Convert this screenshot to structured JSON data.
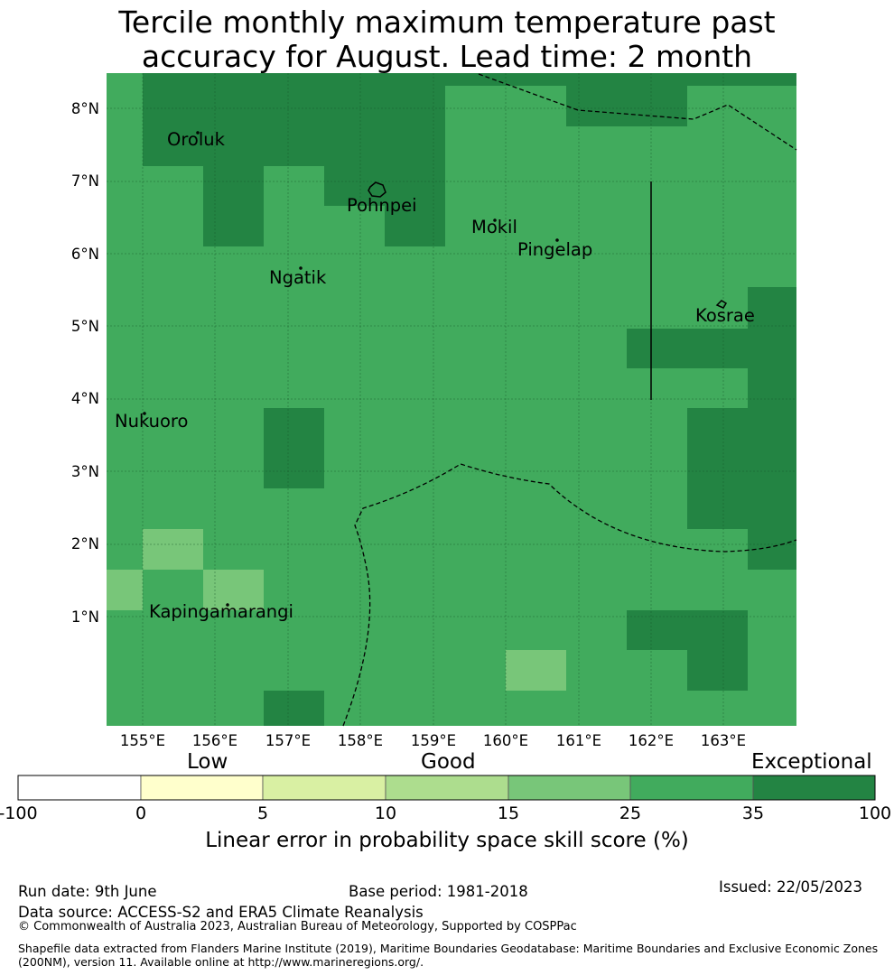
{
  "title_line1": "Tercile monthly maximum temperature past",
  "title_line2": "accuracy for August. Lead time: 2 month",
  "map": {
    "lon_labels": [
      "155°E",
      "156°E",
      "157°E",
      "158°E",
      "159°E",
      "160°E",
      "161°E",
      "162°E",
      "163°E"
    ],
    "lat_labels": [
      "8°N",
      "7°N",
      "6°N",
      "5°N",
      "4°N",
      "3°N",
      "2°N",
      "1°N"
    ],
    "places": [
      "Oroluk",
      "Pohnpei",
      "Mokil",
      "Pingelap",
      "Ngatik",
      "Kosrae",
      "Nukuoro",
      "Kapingamarangi"
    ],
    "colors": {
      "band_25_35": "#41ab5d",
      "band_35_100": "#238443",
      "band_15_25": "#78c679"
    }
  },
  "colorbar": {
    "category_labels": [
      "Low",
      "Good",
      "Exceptional"
    ],
    "ticks": [
      "-100",
      "0",
      "5",
      "10",
      "15",
      "25",
      "35",
      "100"
    ],
    "colors": [
      "#ffffff",
      "#ffffcc",
      "#d9f0a3",
      "#addd8e",
      "#78c679",
      "#41ab5d",
      "#238443"
    ],
    "axis_label": "Linear error in probability space skill score (%)"
  },
  "footer": {
    "run_date": "Run date: 9th June",
    "base_period": "Base period: 1981-2018",
    "issued": "Issued: 22/05/2023",
    "data_source": "Data source: ACCESS-S2 and ERA5 Climate Reanalysis",
    "copyright": "© Commonwealth of Australia 2023, Australian Bureau of Meteorology, Supported by COSPPac",
    "shapefile_1": "Shapefile data extracted from Flanders Marine Institute (2019), Maritime Boundaries Geodatabase: Maritime Boundaries and Exclusive Economic Zones",
    "shapefile_2": "(200NM), version 11. Available online at http://www.marineregions.org/."
  }
}
